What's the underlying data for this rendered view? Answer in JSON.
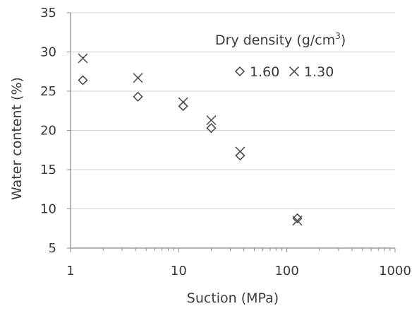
{
  "chart_data": {
    "type": "scatter",
    "title": "",
    "xlabel": "Suction (MPa)",
    "ylabel": "Water content (%)",
    "x_scale": "log",
    "xlim": [
      1,
      1000
    ],
    "ylim": [
      5,
      35
    ],
    "x_ticks": [
      "1",
      "10",
      "100",
      "1000"
    ],
    "y_ticks": [
      "5",
      "10",
      "15",
      "20",
      "25",
      "30",
      "35"
    ],
    "grid": "horizontal",
    "legend": {
      "title_prefix": "Dry density (g/cm",
      "title_sup": "3",
      "title_suffix": ")",
      "position": "top-right"
    },
    "series": [
      {
        "name": "1.60",
        "marker": "diamond",
        "color": "#444444",
        "x": [
          1.3,
          4.2,
          11,
          20,
          37,
          125
        ],
        "y": [
          26.4,
          24.3,
          23.1,
          20.3,
          16.8,
          8.8
        ]
      },
      {
        "name": "1.30",
        "marker": "cross",
        "color": "#555555",
        "x": [
          1.3,
          4.2,
          11,
          20,
          37,
          125
        ],
        "y": [
          29.2,
          26.7,
          23.6,
          21.3,
          17.3,
          8.5
        ]
      }
    ]
  }
}
